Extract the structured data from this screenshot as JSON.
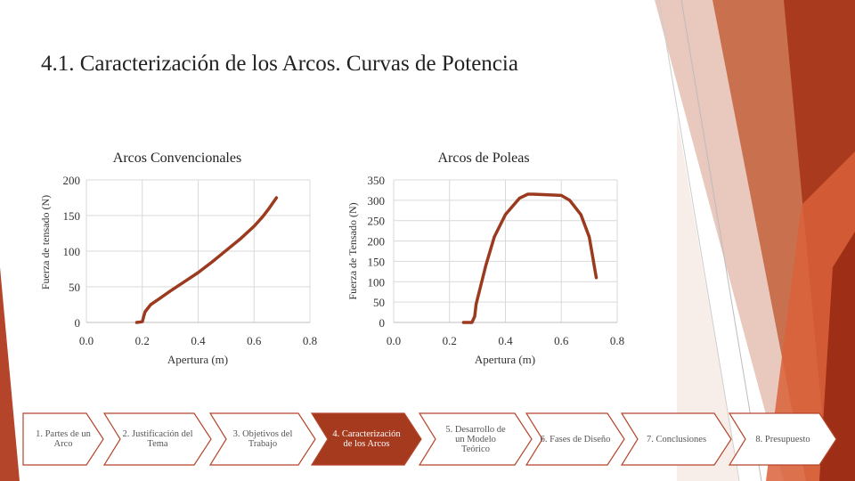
{
  "slide": {
    "title": "4.1. Caracterización de los Arcos. Curvas de Potencia"
  },
  "theme": {
    "accent": "#B5452A",
    "accent_dark": "#8F3420",
    "curve": "#9B3A1E",
    "nav_inactive_fill": "#FFFFFF",
    "nav_inactive_stroke": "#B5452A",
    "nav_active_fill": "#A63A1F"
  },
  "chart_data": [
    {
      "type": "line",
      "title": "Arcos Convencionales",
      "xlabel": "Apertura (m)",
      "ylabel": "Fuerza de tensado (N)",
      "xlim": [
        0.0,
        0.8
      ],
      "ylim": [
        0,
        200
      ],
      "xticks": [
        "0.0",
        "0.2",
        "0.4",
        "0.6",
        "0.8"
      ],
      "yticks": [
        "0",
        "50",
        "100",
        "150",
        "200"
      ],
      "grid": true,
      "series": [
        {
          "x": [
            0.18,
            0.2,
            0.205,
            0.21,
            0.23,
            0.26,
            0.3,
            0.35,
            0.4,
            0.45,
            0.5,
            0.55,
            0.6,
            0.63,
            0.65,
            0.68
          ],
          "y": [
            0,
            1,
            8,
            15,
            25,
            33,
            44,
            57,
            70,
            85,
            101,
            117,
            135,
            148,
            158,
            175
          ]
        }
      ]
    },
    {
      "type": "line",
      "title": "Arcos de Poleas",
      "xlabel": "Apertura (m)",
      "ylabel": "Fuerza de Tensado (N)",
      "xlim": [
        0.0,
        0.8
      ],
      "ylim": [
        0,
        350
      ],
      "xticks": [
        "0.0",
        "0.2",
        "0.4",
        "0.6",
        "0.8"
      ],
      "yticks": [
        "0",
        "50",
        "100",
        "150",
        "200",
        "250",
        "300",
        "350"
      ],
      "grid": true,
      "series": [
        {
          "x": [
            0.25,
            0.28,
            0.29,
            0.295,
            0.33,
            0.36,
            0.4,
            0.45,
            0.48,
            0.5,
            0.6,
            0.63,
            0.67,
            0.7,
            0.71,
            0.72,
            0.725
          ],
          "y": [
            0,
            0,
            15,
            45,
            140,
            210,
            265,
            305,
            315,
            315,
            312,
            300,
            265,
            210,
            170,
            130,
            110
          ]
        }
      ]
    }
  ],
  "nav": {
    "items": [
      {
        "label": "1. Partes de un Arco",
        "active": false
      },
      {
        "label": "2. Justificación del Tema",
        "active": false
      },
      {
        "label": "3. Objetivos del Trabajo",
        "active": false
      },
      {
        "label": "4. Caracterización de los Arcos",
        "active": true
      },
      {
        "label": "5. Desarrollo de un Modelo Teórico",
        "active": false
      },
      {
        "label": "6. Fases de Diseño",
        "active": false
      },
      {
        "label": "7. Conclusiones",
        "active": false
      },
      {
        "label": "8. Presupuesto",
        "active": false
      }
    ]
  }
}
